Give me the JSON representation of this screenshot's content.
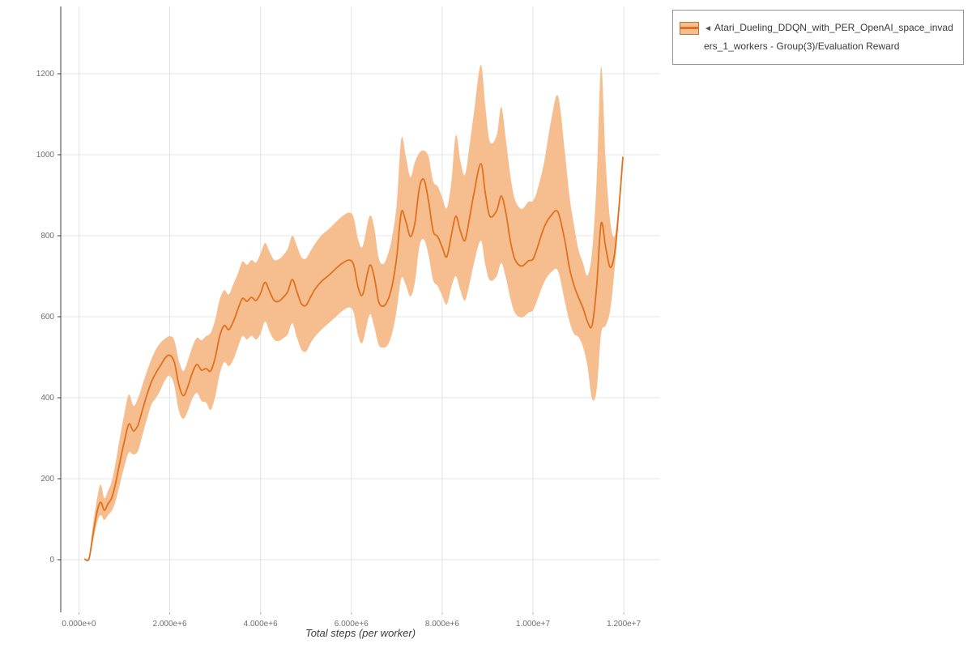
{
  "colors": {
    "line": "#e0711f",
    "band": "#f6bd8f",
    "grid": "#e4e4e4",
    "spine": "#3c3c3c",
    "tick_text": "#6e6e6e",
    "legend_border": "#949494"
  },
  "legend": {
    "marker": "◄",
    "label": "Atari_Dueling_DDQN_with_PER_OpenAI_space_invaders_1_workers - Group(3)/Evaluation Reward"
  },
  "axes": {
    "x_label": "Total steps (per worker)"
  },
  "chart_data": {
    "type": "line",
    "title": "",
    "xlabel": "Total steps (per worker)",
    "ylabel": "",
    "grid": true,
    "legend_position": "top-right",
    "xlim": [
      -400000,
      12800000
    ],
    "ylim": [
      -130,
      1366
    ],
    "x_ticks": [
      {
        "v": 0,
        "label": "0.000e+0"
      },
      {
        "v": 2000000,
        "label": "2.000e+6"
      },
      {
        "v": 4000000,
        "label": "4.000e+6"
      },
      {
        "v": 6000000,
        "label": "6.000e+6"
      },
      {
        "v": 8000000,
        "label": "8.000e+6"
      },
      {
        "v": 10000000,
        "label": "1.000e+7"
      },
      {
        "v": 12000000,
        "label": "1.200e+7"
      }
    ],
    "y_ticks": [
      {
        "v": 0,
        "label": "0"
      },
      {
        "v": 200,
        "label": "200"
      },
      {
        "v": 400,
        "label": "400"
      },
      {
        "v": 600,
        "label": "600"
      },
      {
        "v": 800,
        "label": "800"
      },
      {
        "v": 1000,
        "label": "1000"
      },
      {
        "v": 1200,
        "label": "1200"
      }
    ],
    "series": [
      {
        "name": "Atari_Dueling_DDQN_with_PER_OpenAI_space_invaders_1_workers - Group(3)/Evaluation Reward",
        "color": "#e0711f",
        "band_color": "#f6bd8f",
        "x_scale": 1000000,
        "point_format": [
          "x_in_millions",
          "mean",
          "band_low",
          "band_high"
        ],
        "points": [
          [
            0.12,
            2,
            2,
            2
          ],
          [
            0.22,
            2,
            2,
            2
          ],
          [
            0.3,
            55,
            38,
            78
          ],
          [
            0.4,
            118,
            92,
            150
          ],
          [
            0.48,
            142,
            110,
            186
          ],
          [
            0.56,
            122,
            98,
            152
          ],
          [
            0.64,
            138,
            110,
            170
          ],
          [
            0.72,
            152,
            120,
            192
          ],
          [
            0.8,
            185,
            142,
            235
          ],
          [
            0.9,
            240,
            185,
            300
          ],
          [
            1.0,
            292,
            230,
            360
          ],
          [
            1.1,
            335,
            265,
            408
          ],
          [
            1.2,
            318,
            260,
            380
          ],
          [
            1.3,
            332,
            268,
            398
          ],
          [
            1.4,
            370,
            308,
            432
          ],
          [
            1.5,
            408,
            348,
            466
          ],
          [
            1.6,
            440,
            384,
            496
          ],
          [
            1.7,
            462,
            400,
            520
          ],
          [
            1.8,
            480,
            420,
            536
          ],
          [
            1.9,
            498,
            444,
            546
          ],
          [
            2.0,
            505,
            454,
            552
          ],
          [
            2.1,
            488,
            430,
            542
          ],
          [
            2.2,
            432,
            368,
            492
          ],
          [
            2.3,
            405,
            348,
            466
          ],
          [
            2.4,
            428,
            368,
            492
          ],
          [
            2.5,
            462,
            398,
            526
          ],
          [
            2.6,
            482,
            412,
            548
          ],
          [
            2.7,
            468,
            392,
            542
          ],
          [
            2.8,
            472,
            388,
            552
          ],
          [
            2.9,
            466,
            370,
            560
          ],
          [
            3.0,
            498,
            402,
            592
          ],
          [
            3.1,
            552,
            458,
            642
          ],
          [
            3.2,
            578,
            488,
            665
          ],
          [
            3.3,
            568,
            478,
            655
          ],
          [
            3.4,
            588,
            494,
            680
          ],
          [
            3.5,
            618,
            524,
            706
          ],
          [
            3.6,
            645,
            552,
            736
          ],
          [
            3.7,
            638,
            544,
            728
          ],
          [
            3.8,
            648,
            553,
            740
          ],
          [
            3.9,
            640,
            544,
            734
          ],
          [
            4.0,
            658,
            558,
            756
          ],
          [
            4.1,
            685,
            588,
            782
          ],
          [
            4.2,
            662,
            563,
            760
          ],
          [
            4.3,
            640,
            543,
            740
          ],
          [
            4.4,
            638,
            540,
            742
          ],
          [
            4.5,
            648,
            547,
            752
          ],
          [
            4.6,
            662,
            557,
            768
          ],
          [
            4.7,
            692,
            584,
            800
          ],
          [
            4.8,
            662,
            549,
            775
          ],
          [
            4.9,
            632,
            519,
            747
          ],
          [
            5.0,
            628,
            514,
            744
          ],
          [
            5.1,
            648,
            534,
            762
          ],
          [
            5.2,
            668,
            551,
            780
          ],
          [
            5.35,
            688,
            569,
            802
          ],
          [
            5.5,
            702,
            584,
            816
          ],
          [
            5.65,
            718,
            599,
            833
          ],
          [
            5.8,
            732,
            614,
            848
          ],
          [
            5.95,
            740,
            623,
            857
          ],
          [
            6.05,
            728,
            610,
            845
          ],
          [
            6.15,
            672,
            553,
            790
          ],
          [
            6.25,
            655,
            537,
            774
          ],
          [
            6.4,
            726,
            605,
            848
          ],
          [
            6.5,
            700,
            577,
            822
          ],
          [
            6.6,
            638,
            531,
            746
          ],
          [
            6.7,
            626,
            524,
            730
          ],
          [
            6.8,
            640,
            530,
            752
          ],
          [
            6.9,
            678,
            560,
            798
          ],
          [
            7.0,
            748,
            618,
            880
          ],
          [
            7.1,
            858,
            695,
            1040
          ],
          [
            7.2,
            835,
            678,
            995
          ],
          [
            7.3,
            798,
            650,
            945
          ],
          [
            7.4,
            832,
            685,
            982
          ],
          [
            7.5,
            920,
            775,
            1005
          ],
          [
            7.6,
            938,
            790,
            1010
          ],
          [
            7.7,
            885,
            752,
            995
          ],
          [
            7.8,
            812,
            690,
            935
          ],
          [
            7.9,
            798,
            676,
            922
          ],
          [
            8.0,
            772,
            652,
            895
          ],
          [
            8.1,
            748,
            630,
            868
          ],
          [
            8.2,
            800,
            672,
            930
          ],
          [
            8.3,
            848,
            700,
            1048
          ],
          [
            8.4,
            812,
            666,
            985
          ],
          [
            8.5,
            788,
            640,
            950
          ],
          [
            8.6,
            842,
            680,
            1020
          ],
          [
            8.7,
            905,
            732,
            1105
          ],
          [
            8.85,
            978,
            788,
            1222
          ],
          [
            8.95,
            905,
            728,
            1120
          ],
          [
            9.05,
            848,
            690,
            1032
          ],
          [
            9.2,
            862,
            700,
            1048
          ],
          [
            9.3,
            898,
            733,
            1118
          ],
          [
            9.4,
            858,
            698,
            1040
          ],
          [
            9.5,
            788,
            646,
            950
          ],
          [
            9.6,
            742,
            610,
            890
          ],
          [
            9.75,
            725,
            598,
            866
          ],
          [
            9.9,
            738,
            610,
            884
          ],
          [
            10.0,
            742,
            616,
            886
          ],
          [
            10.1,
            772,
            643,
            914
          ],
          [
            10.25,
            822,
            686,
            984
          ],
          [
            10.4,
            850,
            710,
            1086
          ],
          [
            10.55,
            858,
            713,
            1145
          ],
          [
            10.7,
            788,
            638,
            1008
          ],
          [
            10.8,
            722,
            590,
            900
          ],
          [
            10.9,
            678,
            558,
            828
          ],
          [
            11.0,
            648,
            550,
            766
          ],
          [
            11.1,
            622,
            526,
            733
          ],
          [
            11.2,
            588,
            478,
            702
          ],
          [
            11.3,
            578,
            398,
            760
          ],
          [
            11.4,
            672,
            418,
            932
          ],
          [
            11.5,
            830,
            558,
            1218
          ],
          [
            11.6,
            772,
            578,
            984
          ],
          [
            11.7,
            722,
            616,
            836
          ],
          [
            11.8,
            758,
            720,
            800
          ],
          [
            11.9,
            878,
            858,
            896
          ],
          [
            11.98,
            995,
            992,
            998
          ]
        ]
      }
    ]
  }
}
